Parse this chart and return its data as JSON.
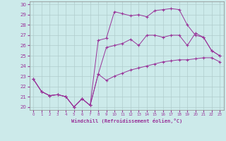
{
  "xlabel": "Windchill (Refroidissement éolien,°C)",
  "bg_color": "#cceaea",
  "line_color": "#993399",
  "grid_color": "#aacccc",
  "xlim": [
    -0.5,
    23.5
  ],
  "ylim": [
    19.7,
    30.3
  ],
  "yticks": [
    20,
    21,
    22,
    23,
    24,
    25,
    26,
    27,
    28,
    29,
    30
  ],
  "xticks": [
    0,
    1,
    2,
    3,
    4,
    5,
    6,
    7,
    8,
    9,
    10,
    11,
    12,
    13,
    14,
    15,
    16,
    17,
    18,
    19,
    20,
    21,
    22,
    23
  ],
  "line1_x": [
    0,
    1,
    2,
    3,
    4,
    5,
    6,
    7,
    8,
    9,
    10,
    11,
    12,
    13,
    14,
    15,
    16,
    17,
    18,
    19,
    20,
    21,
    22,
    23
  ],
  "line1_y": [
    22.7,
    21.5,
    21.1,
    21.2,
    21.0,
    20.0,
    20.8,
    20.15,
    23.2,
    22.6,
    23.0,
    23.3,
    23.6,
    23.8,
    24.0,
    24.2,
    24.4,
    24.5,
    24.6,
    24.6,
    24.7,
    24.8,
    24.8,
    24.4
  ],
  "line2_x": [
    0,
    1,
    2,
    3,
    4,
    5,
    6,
    7,
    8,
    9,
    10,
    11,
    12,
    13,
    14,
    15,
    16,
    17,
    18,
    19,
    20,
    21,
    22,
    23
  ],
  "line2_y": [
    22.7,
    21.5,
    21.1,
    21.2,
    21.0,
    20.0,
    20.8,
    20.15,
    23.2,
    25.8,
    26.0,
    26.2,
    26.6,
    26.0,
    27.0,
    27.0,
    26.8,
    27.0,
    27.0,
    26.0,
    27.2,
    26.8,
    25.5,
    25.0
  ],
  "line3_x": [
    0,
    1,
    2,
    3,
    4,
    5,
    6,
    7,
    8,
    9,
    10,
    11,
    12,
    13,
    14,
    15,
    16,
    17,
    18,
    19,
    20,
    21,
    22,
    23
  ],
  "line3_y": [
    22.7,
    21.5,
    21.1,
    21.2,
    21.0,
    20.0,
    20.8,
    20.15,
    26.5,
    26.7,
    29.3,
    29.1,
    28.9,
    29.0,
    28.8,
    29.4,
    29.5,
    29.6,
    29.5,
    28.0,
    27.0,
    26.8,
    25.5,
    25.0
  ]
}
